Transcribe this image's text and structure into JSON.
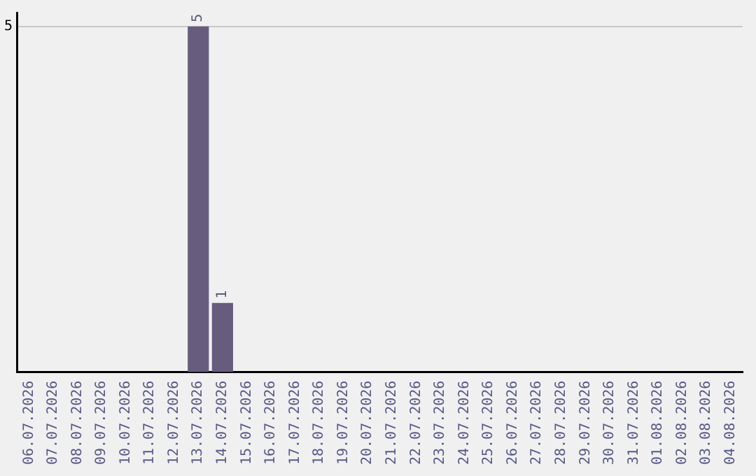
{
  "chart_data": {
    "type": "bar",
    "categories": [
      "06.07.2026",
      "07.07.2026",
      "08.07.2026",
      "09.07.2026",
      "10.07.2026",
      "11.07.2026",
      "12.07.2026",
      "13.07.2026",
      "14.07.2026",
      "15.07.2026",
      "16.07.2026",
      "17.07.2026",
      "18.07.2026",
      "19.07.2026",
      "20.07.2026",
      "21.07.2026",
      "22.07.2026",
      "23.07.2026",
      "24.07.2026",
      "25.07.2026",
      "26.07.2026",
      "27.07.2026",
      "28.07.2026",
      "29.07.2026",
      "30.07.2026",
      "31.07.2026",
      "01.08.2026",
      "02.08.2026",
      "03.08.2026",
      "04.08.2026"
    ],
    "values": [
      0,
      0,
      0,
      0,
      0,
      0,
      0,
      5,
      1,
      0,
      0,
      0,
      0,
      0,
      0,
      0,
      0,
      0,
      0,
      0,
      0,
      0,
      0,
      0,
      0,
      0,
      0,
      0,
      0,
      0
    ],
    "value_labels": [
      null,
      null,
      null,
      null,
      null,
      null,
      null,
      "5",
      "1",
      null,
      null,
      null,
      null,
      null,
      null,
      null,
      null,
      null,
      null,
      null,
      null,
      null,
      null,
      null,
      null,
      null,
      null,
      null,
      null,
      null
    ],
    "color": "#675c7e",
    "ylim": [
      0,
      5.2
    ],
    "yticks": [
      5
    ],
    "grid": "y",
    "legend": false
  }
}
